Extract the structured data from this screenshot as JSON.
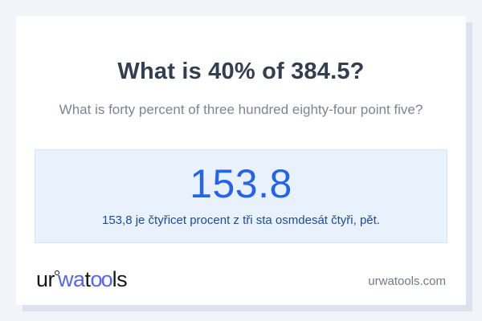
{
  "card": {
    "title": "What is 40% of 384.5?",
    "subtitle": "What is forty percent of three hundred eighty-four point five?",
    "result": {
      "value": "153.8",
      "description": "153,8 je čtyřicet procent z tři sta osmdesát čtyři, pět."
    },
    "footer": {
      "logo": {
        "seg1": "ur",
        "seg2": "wa",
        "seg3": "t",
        "seg4": "oo",
        "seg5": "ls"
      },
      "website": "urwatools.com"
    }
  },
  "colors": {
    "page_bg": "#f2f4f9",
    "card_bg": "#ffffff",
    "card_shadow": "#dce2ee",
    "title": "#333e50",
    "subtitle": "#7b8596",
    "result_box_bg": "#e9f2fc",
    "result_box_border": "#d6e4f7",
    "result_value": "#2563eb",
    "result_description": "#1e4a9e",
    "logo_dark": "#17181c",
    "logo_blue": "#5565f2",
    "website_text": "#707a8a"
  }
}
